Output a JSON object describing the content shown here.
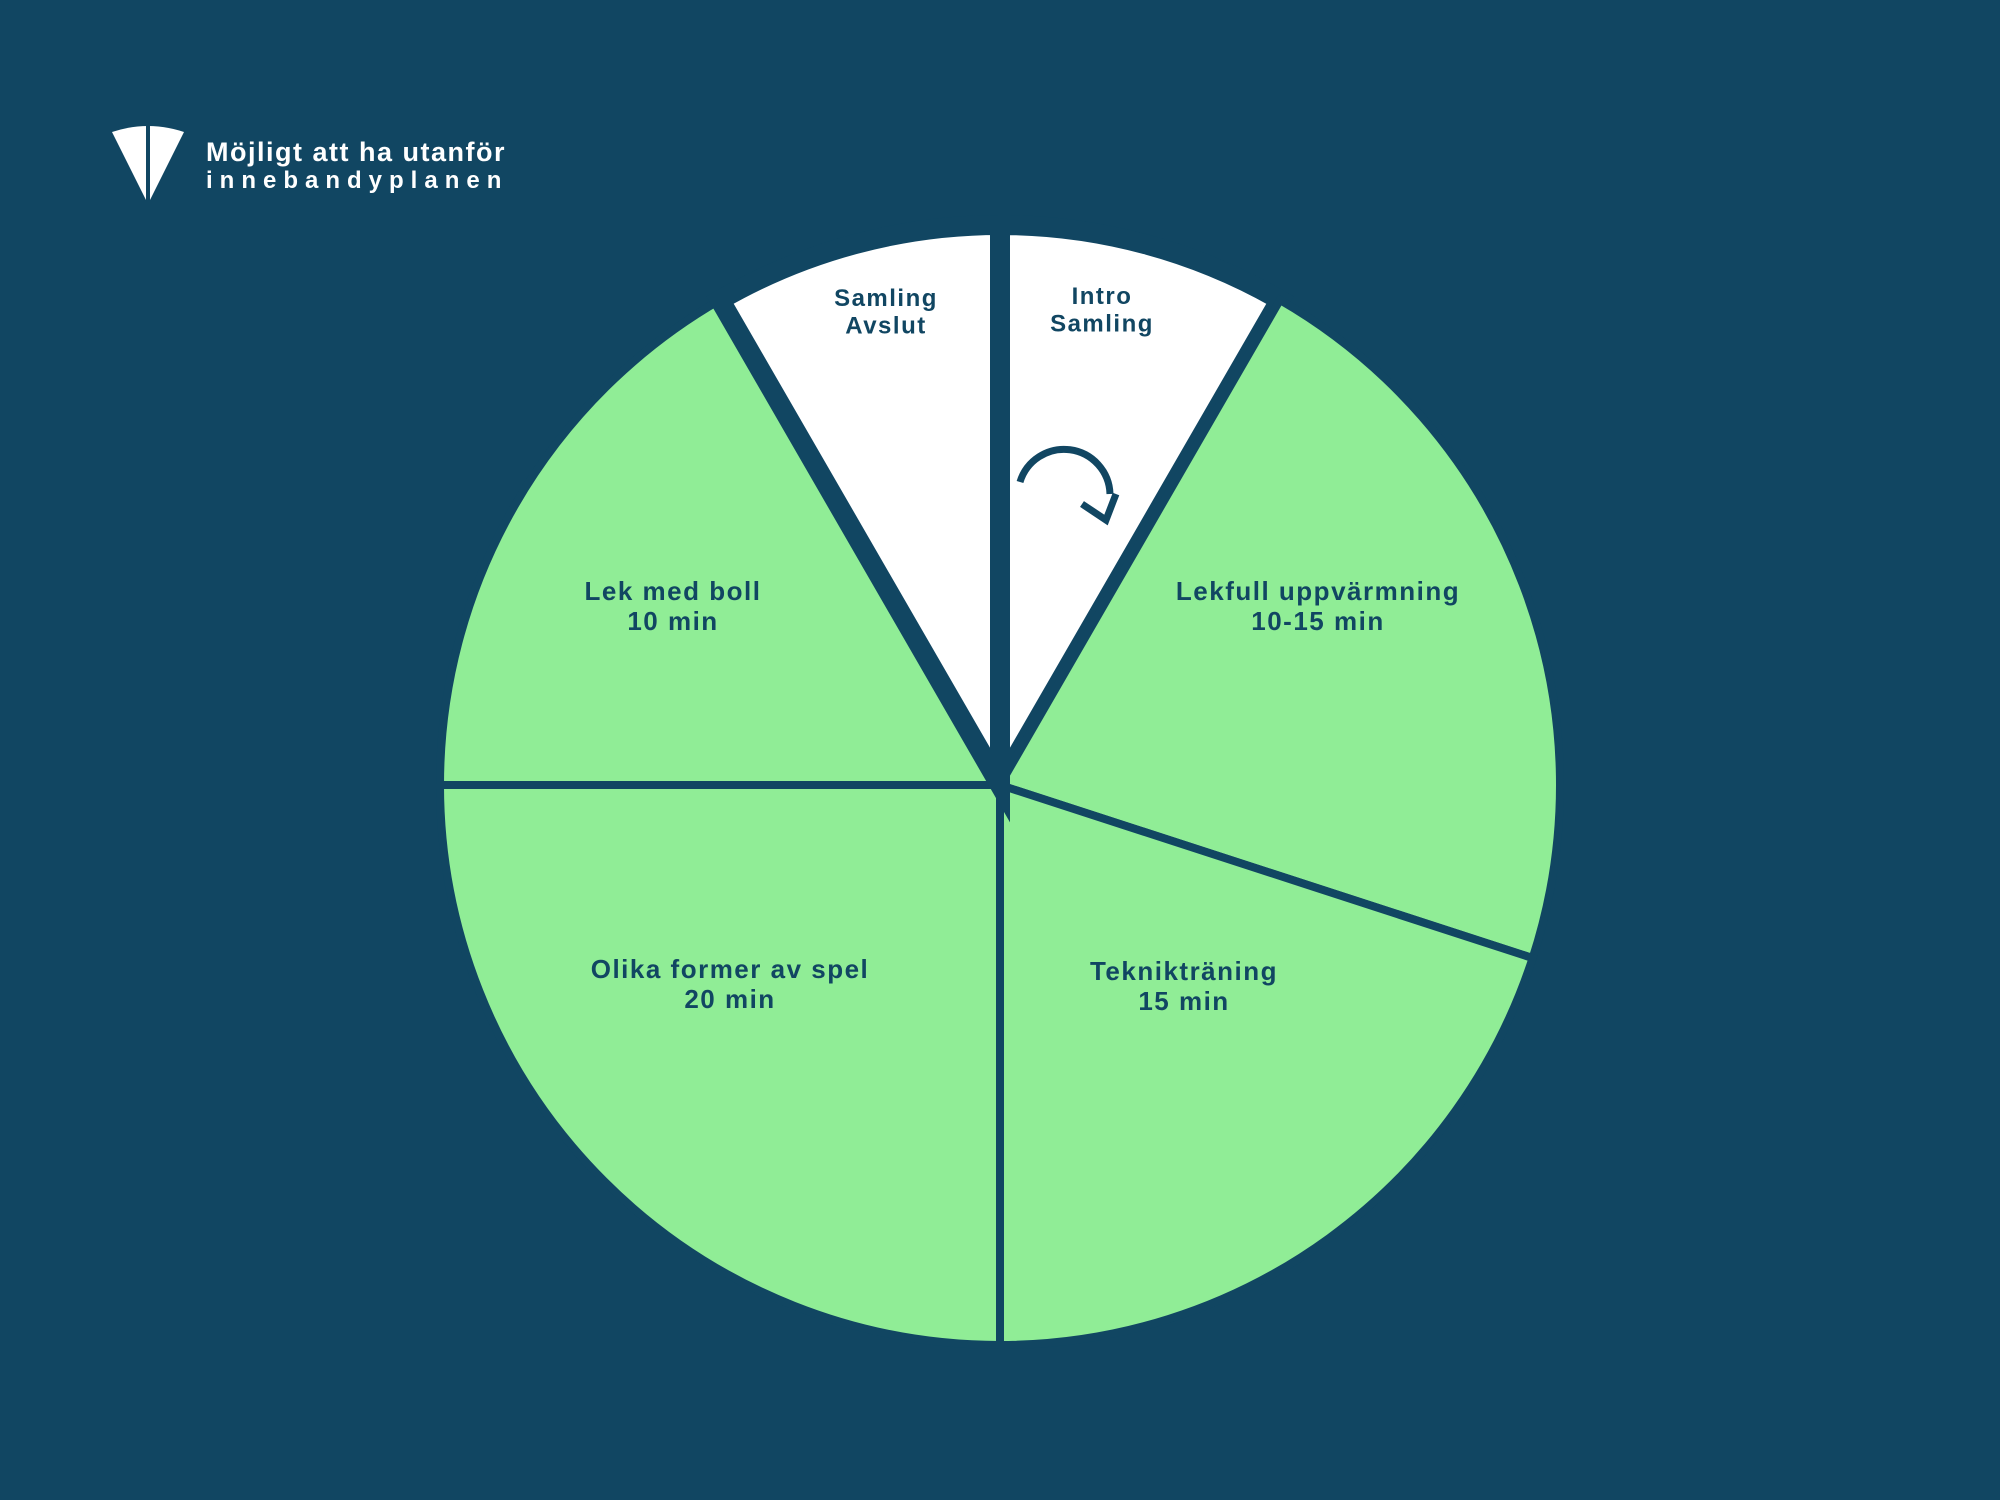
{
  "colors": {
    "background": "#114662",
    "slice_green": "#90ED96",
    "slice_white": "#FFFFFF",
    "label": "#114662"
  },
  "legend": {
    "icon": "white-segment-icon",
    "line1": "Möjligt att ha utanför",
    "line2": "innebandyplanen"
  },
  "cycle_arrow_icon": "clockwise-arrow-icon",
  "segments": [
    {
      "name": "intro-samling",
      "lines": [
        "Intro",
        "Samling"
      ],
      "fill": "white"
    },
    {
      "name": "lekfull-uppvarmning",
      "lines": [
        "Lekfull uppvärmning",
        "10-15 min"
      ],
      "fill": "green"
    },
    {
      "name": "teknikträning",
      "lines": [
        "Teknikträning",
        "15 min"
      ],
      "fill": "green"
    },
    {
      "name": "olika-former-av-spel",
      "lines": [
        "Olika former av spel",
        "20 min"
      ],
      "fill": "green"
    },
    {
      "name": "lek-med-boll",
      "lines": [
        "Lek med boll",
        "10 min"
      ],
      "fill": "green"
    },
    {
      "name": "samling-avslut",
      "lines": [
        "Samling",
        "Avslut"
      ],
      "fill": "white"
    }
  ]
}
